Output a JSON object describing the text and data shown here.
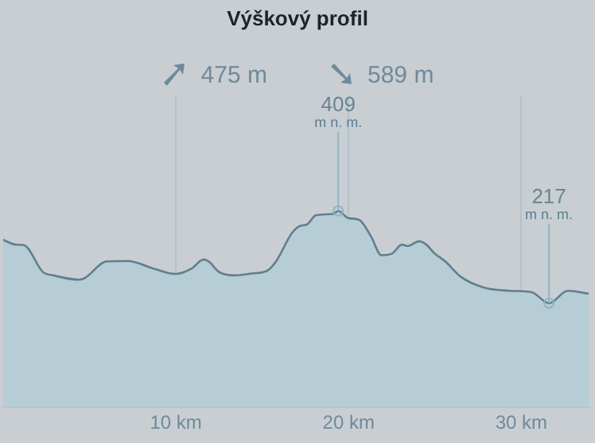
{
  "chart_data": {
    "type": "area",
    "title": "Výškový profil",
    "annotations": [
      "475 m",
      "589 m",
      {
        "text": "m n. m.",
        "x": 19.4,
        "y": 409
      },
      {
        "text": "m n. m.",
        "x": 31.6,
        "y": 217
      }
    ],
    "x": [
      0,
      0.74,
      1.2,
      2.3,
      2.9,
      4.4,
      4.7,
      6.0,
      7.2,
      8.8,
      10.0,
      10.9,
      11.6,
      11.9,
      12.5,
      13.4,
      14.4,
      15.3,
      15.8,
      16.7,
      17.2,
      17.6,
      18.1,
      19.1,
      19.4,
      20.0,
      20.6,
      21.3,
      21.9,
      22.5,
      23.1,
      23.4,
      24.1,
      24.5,
      25.0,
      25.6,
      26.5,
      27.8,
      29.3,
      30.6,
      31.6,
      32.7,
      33.9
    ],
    "series": [
      {
        "color": "#5f7f8f",
        "values": [
          349,
          339,
          338,
          282,
          275,
          266,
          269,
          304,
          305,
          288,
          278,
          289,
          308,
          304,
          282,
          275,
          279,
          285,
          304,
          362,
          378,
          381,
          400,
          403,
          409,
          394,
          391,
          356,
          317,
          320,
          339,
          336,
          346,
          339,
          320,
          304,
          272,
          250,
          243,
          240,
          217,
          243,
          237
        ],
        "value_labels": [
          null,
          null,
          null,
          null,
          null,
          null,
          null,
          null,
          null,
          null,
          null,
          null,
          null,
          null,
          null,
          null,
          null,
          null,
          null,
          null,
          null,
          null,
          null,
          null,
          "409",
          null,
          null,
          null,
          null,
          null,
          null,
          null,
          null,
          null,
          null,
          null,
          null,
          null,
          null,
          null,
          "217",
          null,
          null
        ]
      }
    ],
    "xlim": [
      0,
      33.9
    ],
    "xticks": [
      {
        "value": 10,
        "label": "10 km"
      },
      {
        "value": 20,
        "label": "20 km"
      },
      {
        "value": 30,
        "label": "30 km"
      }
    ],
    "ylim": [
      0,
      650
    ],
    "grid": "x",
    "tick_labels": "x",
    "legend": false
  }
}
